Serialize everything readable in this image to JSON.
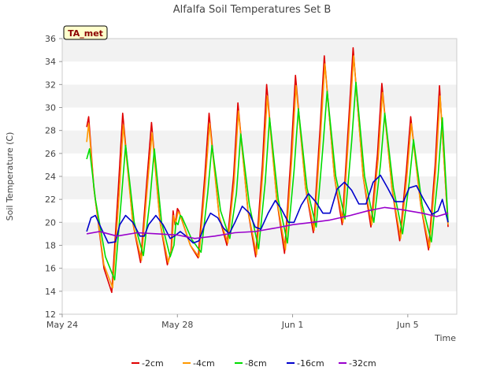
{
  "chart_data": {
    "type": "line",
    "title": "Alfalfa Soil Temperatures Set B",
    "xlabel": "Time",
    "ylabel": "Soil Temperature (C)",
    "badge": "TA_met",
    "x_range_days": [
      0,
      13.7
    ],
    "x_ticks": [
      {
        "day": 0,
        "label": "May 24"
      },
      {
        "day": 4,
        "label": "May 28"
      },
      {
        "day": 8,
        "label": "Jun 1"
      },
      {
        "day": 12,
        "label": "Jun 5"
      }
    ],
    "ylim": [
      12,
      36
    ],
    "y_ticks": [
      12,
      14,
      16,
      18,
      20,
      22,
      24,
      26,
      28,
      30,
      32,
      34,
      36
    ],
    "grid": "horizontal bands",
    "legend_position": "bottom",
    "series": [
      {
        "name": "-2cm",
        "color": "#e00000",
        "x": [
          0.85,
          0.92,
          1.1,
          1.45,
          1.72,
          1.95,
          2.1,
          2.45,
          2.72,
          2.95,
          3.1,
          3.4,
          3.65,
          3.78,
          3.85,
          3.92,
          4.0,
          4.05,
          4.45,
          4.72,
          4.95,
          5.1,
          5.45,
          5.72,
          5.95,
          6.1,
          6.45,
          6.72,
          6.95,
          7.1,
          7.45,
          7.72,
          7.95,
          8.1,
          8.45,
          8.72,
          8.95,
          9.1,
          9.45,
          9.72,
          9.95,
          10.1,
          10.45,
          10.72,
          10.95,
          11.1,
          11.45,
          11.72,
          11.95,
          12.1,
          12.45,
          12.72,
          12.95,
          13.1,
          13.4
        ],
        "y": [
          28.3,
          29.2,
          23.0,
          16.0,
          13.9,
          23.0,
          29.5,
          20.0,
          16.5,
          24.0,
          28.7,
          20.0,
          16.3,
          17.5,
          21.0,
          19.8,
          21.2,
          21.0,
          18.0,
          16.9,
          24.0,
          29.5,
          20.5,
          18.0,
          24.0,
          30.4,
          21.0,
          17.0,
          25.0,
          32.0,
          22.0,
          17.3,
          26.0,
          32.8,
          23.0,
          19.1,
          28.0,
          34.5,
          24.0,
          19.8,
          29.0,
          35.2,
          24.0,
          19.6,
          26.0,
          32.1,
          23.0,
          18.4,
          24.5,
          29.2,
          21.5,
          17.6,
          25.0,
          31.9,
          19.6
        ]
      },
      {
        "name": "-4cm",
        "color": "#ff9900",
        "x": [
          0.85,
          0.92,
          1.1,
          1.45,
          1.75,
          1.98,
          2.12,
          2.45,
          2.75,
          2.97,
          3.12,
          3.4,
          3.68,
          3.8,
          3.87,
          3.94,
          4.02,
          4.07,
          4.45,
          4.75,
          4.97,
          5.12,
          5.45,
          5.75,
          5.97,
          6.12,
          6.45,
          6.75,
          6.97,
          7.12,
          7.45,
          7.75,
          7.97,
          8.12,
          8.45,
          8.75,
          8.97,
          9.12,
          9.45,
          9.75,
          9.97,
          10.12,
          10.45,
          10.75,
          10.97,
          11.12,
          11.45,
          11.75,
          11.97,
          12.12,
          12.45,
          12.75,
          12.97,
          13.12,
          13.4
        ],
        "y": [
          27.0,
          28.6,
          23.0,
          16.3,
          14.3,
          22.5,
          28.5,
          20.0,
          16.7,
          23.5,
          27.8,
          20.0,
          16.5,
          17.6,
          20.6,
          19.9,
          20.9,
          20.8,
          18.0,
          17.0,
          23.5,
          28.6,
          20.5,
          18.2,
          23.5,
          29.7,
          21.0,
          17.2,
          24.5,
          31.0,
          22.0,
          17.6,
          25.5,
          31.9,
          23.0,
          19.3,
          27.5,
          33.8,
          24.0,
          20.0,
          28.5,
          34.5,
          24.0,
          19.8,
          25.5,
          31.3,
          23.0,
          18.6,
          24.0,
          28.6,
          21.5,
          17.8,
          24.5,
          31.0,
          19.8
        ]
      },
      {
        "name": "-8cm",
        "color": "#00dd00",
        "x": [
          0.85,
          0.95,
          1.15,
          1.5,
          1.82,
          2.05,
          2.2,
          2.5,
          2.82,
          3.05,
          3.2,
          3.45,
          3.75,
          3.88,
          3.95,
          4.02,
          4.1,
          4.15,
          4.5,
          4.82,
          5.05,
          5.2,
          5.5,
          5.82,
          6.05,
          6.2,
          6.5,
          6.82,
          7.05,
          7.2,
          7.5,
          7.82,
          8.05,
          8.2,
          8.5,
          8.82,
          9.05,
          9.2,
          9.5,
          9.82,
          10.05,
          10.2,
          10.5,
          10.82,
          11.05,
          11.2,
          11.5,
          11.82,
          12.05,
          12.2,
          12.5,
          12.82,
          13.05,
          13.2,
          13.4
        ],
        "y": [
          25.5,
          26.4,
          22.0,
          17.0,
          15.0,
          22.0,
          26.7,
          20.0,
          17.1,
          22.0,
          26.4,
          20.0,
          17.0,
          18.0,
          20.0,
          19.8,
          20.6,
          20.5,
          18.5,
          17.4,
          22.5,
          26.7,
          21.0,
          18.6,
          22.5,
          27.7,
          21.5,
          17.7,
          23.5,
          29.1,
          22.0,
          18.2,
          24.5,
          29.9,
          23.0,
          19.6,
          26.5,
          31.4,
          24.0,
          20.3,
          27.0,
          32.2,
          24.0,
          20.0,
          25.0,
          29.5,
          23.0,
          19.0,
          23.5,
          27.2,
          21.5,
          18.3,
          24.0,
          29.1,
          20.0
        ]
      },
      {
        "name": "-16cm",
        "color": "#0000cc",
        "x": [
          0.85,
          1.0,
          1.15,
          1.35,
          1.6,
          1.85,
          2.0,
          2.2,
          2.45,
          2.7,
          2.85,
          3.0,
          3.25,
          3.5,
          3.75,
          3.9,
          4.1,
          4.3,
          4.55,
          4.75,
          4.95,
          5.15,
          5.4,
          5.6,
          5.8,
          6.0,
          6.25,
          6.5,
          6.7,
          6.9,
          7.15,
          7.4,
          7.6,
          7.85,
          8.05,
          8.3,
          8.55,
          8.8,
          9.05,
          9.3,
          9.55,
          9.8,
          10.05,
          10.3,
          10.55,
          10.8,
          11.05,
          11.3,
          11.55,
          11.85,
          12.05,
          12.3,
          12.55,
          12.85,
          13.05,
          13.2,
          13.4
        ],
        "y": [
          19.2,
          20.4,
          20.6,
          19.5,
          18.2,
          18.3,
          19.8,
          20.6,
          20.0,
          18.8,
          18.8,
          19.8,
          20.6,
          19.8,
          18.6,
          18.8,
          19.2,
          18.8,
          18.2,
          18.4,
          19.8,
          20.8,
          20.4,
          19.5,
          19.0,
          20.0,
          21.4,
          20.8,
          19.6,
          19.4,
          20.8,
          21.9,
          21.2,
          20.0,
          20.0,
          21.5,
          22.5,
          21.8,
          20.8,
          20.8,
          22.9,
          23.5,
          22.8,
          21.6,
          21.6,
          23.5,
          24.1,
          23.0,
          21.8,
          21.8,
          23.0,
          23.2,
          22.0,
          20.7,
          21.0,
          22.0,
          20.0
        ]
      },
      {
        "name": "-32cm",
        "color": "#9900cc",
        "x": [
          0.85,
          1.3,
          1.9,
          2.6,
          3.3,
          4.0,
          4.6,
          5.3,
          6.0,
          6.7,
          7.4,
          8.0,
          8.7,
          9.3,
          10.0,
          10.6,
          11.2,
          11.8,
          12.5,
          13.0,
          13.4
        ],
        "y": [
          19.0,
          19.2,
          18.8,
          19.1,
          19.0,
          18.9,
          18.6,
          18.8,
          19.1,
          19.2,
          19.5,
          19.8,
          20.0,
          20.2,
          20.6,
          21.0,
          21.3,
          21.1,
          20.8,
          20.5,
          20.8
        ]
      }
    ]
  }
}
